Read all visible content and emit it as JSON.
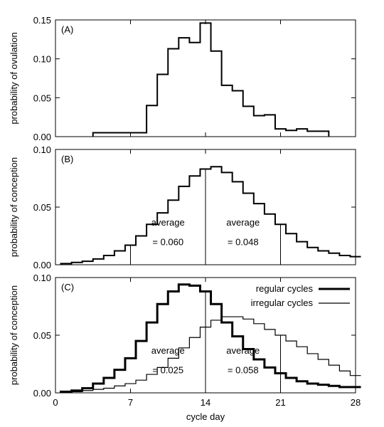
{
  "chart_data": [
    {
      "type": "step",
      "panel_label": "(A)",
      "ylabel": "probability of ovulation",
      "xlim": [
        0,
        28
      ],
      "ylim": [
        0,
        0.15
      ],
      "yticks": [
        0.0,
        0.05,
        0.1,
        0.15
      ],
      "ytick_labels": [
        "0.00",
        "0.05",
        "0.10",
        "0.15"
      ],
      "series": [
        {
          "style": "medium",
          "x": [
            4,
            5,
            6,
            7,
            8,
            9,
            10,
            11,
            12,
            13,
            14,
            15,
            16,
            17,
            18,
            19,
            20,
            21,
            22,
            23,
            24,
            25
          ],
          "y": [
            0.005,
            0.005,
            0.005,
            0.005,
            0.005,
            0.04,
            0.08,
            0.113,
            0.127,
            0.121,
            0.146,
            0.11,
            0.066,
            0.059,
            0.039,
            0.027,
            0.028,
            0.01,
            0.008,
            0.01,
            0.007,
            0.007
          ]
        }
      ]
    },
    {
      "type": "step",
      "panel_label": "(B)",
      "ylabel": "probability of conception",
      "xlim": [
        0,
        28
      ],
      "ylim": [
        0,
        0.1
      ],
      "yticks": [
        0.0,
        0.05,
        0.1
      ],
      "ytick_labels": [
        "0.00",
        "0.05",
        "0.10"
      ],
      "series": [
        {
          "style": "medium",
          "x": [
            1,
            2,
            3,
            4,
            5,
            6,
            7,
            8,
            9,
            10,
            11,
            12,
            13,
            14,
            15,
            16,
            17,
            18,
            19,
            20,
            21,
            22,
            23,
            24,
            25,
            26,
            27,
            28
          ],
          "y": [
            0.001,
            0.002,
            0.003,
            0.005,
            0.008,
            0.012,
            0.017,
            0.025,
            0.035,
            0.045,
            0.056,
            0.068,
            0.077,
            0.083,
            0.085,
            0.08,
            0.072,
            0.062,
            0.053,
            0.044,
            0.035,
            0.027,
            0.02,
            0.015,
            0.012,
            0.01,
            0.008,
            0.007
          ]
        }
      ],
      "vlines": [
        7,
        14,
        21
      ],
      "annotations": [
        {
          "lines": [
            "average",
            "= 0.060"
          ],
          "x": 10.5,
          "y": [
            0.034,
            0.017
          ]
        },
        {
          "lines": [
            "average",
            "= 0.048"
          ],
          "x": 17.5,
          "y": [
            0.034,
            0.017
          ]
        }
      ]
    },
    {
      "type": "step",
      "panel_label": "(C)",
      "ylabel": "probability of conception",
      "xlabel": "cycle day",
      "xlim": [
        0,
        28
      ],
      "ylim": [
        0,
        0.1
      ],
      "yticks": [
        0.0,
        0.05,
        0.1
      ],
      "ytick_labels": [
        "0.00",
        "0.05",
        "0.10"
      ],
      "xticks": [
        0,
        7,
        14,
        21,
        28
      ],
      "legend_position": "top-right",
      "series": [
        {
          "name": "regular cycles",
          "style": "thick",
          "x": [
            1,
            2,
            3,
            4,
            5,
            6,
            7,
            8,
            9,
            10,
            11,
            12,
            13,
            14,
            15,
            16,
            17,
            18,
            19,
            20,
            21,
            22,
            23,
            24,
            25,
            26,
            27,
            28
          ],
          "y": [
            0.001,
            0.002,
            0.004,
            0.008,
            0.013,
            0.02,
            0.03,
            0.045,
            0.061,
            0.077,
            0.088,
            0.094,
            0.093,
            0.088,
            0.077,
            0.061,
            0.049,
            0.038,
            0.029,
            0.022,
            0.017,
            0.013,
            0.01,
            0.008,
            0.007,
            0.006,
            0.005,
            0.005
          ]
        },
        {
          "name": "irregular cycles",
          "style": "thin",
          "x": [
            1,
            2,
            3,
            4,
            5,
            6,
            7,
            8,
            9,
            10,
            11,
            12,
            13,
            14,
            15,
            16,
            17,
            18,
            19,
            20,
            21,
            22,
            23,
            24,
            25,
            26,
            27,
            28
          ],
          "y": [
            0.001,
            0.001,
            0.002,
            0.003,
            0.004,
            0.006,
            0.008,
            0.011,
            0.016,
            0.022,
            0.03,
            0.039,
            0.048,
            0.057,
            0.063,
            0.066,
            0.066,
            0.064,
            0.06,
            0.055,
            0.05,
            0.045,
            0.04,
            0.034,
            0.029,
            0.024,
            0.019,
            0.015
          ]
        }
      ],
      "vlines": [
        14,
        21
      ],
      "annotations": [
        {
          "lines": [
            "average",
            "= 0.025"
          ],
          "x": 10.5,
          "y": [
            0.034,
            0.017
          ]
        },
        {
          "lines": [
            "average",
            "= 0.058"
          ],
          "x": 17.5,
          "y": [
            0.034,
            0.017
          ]
        }
      ]
    }
  ]
}
